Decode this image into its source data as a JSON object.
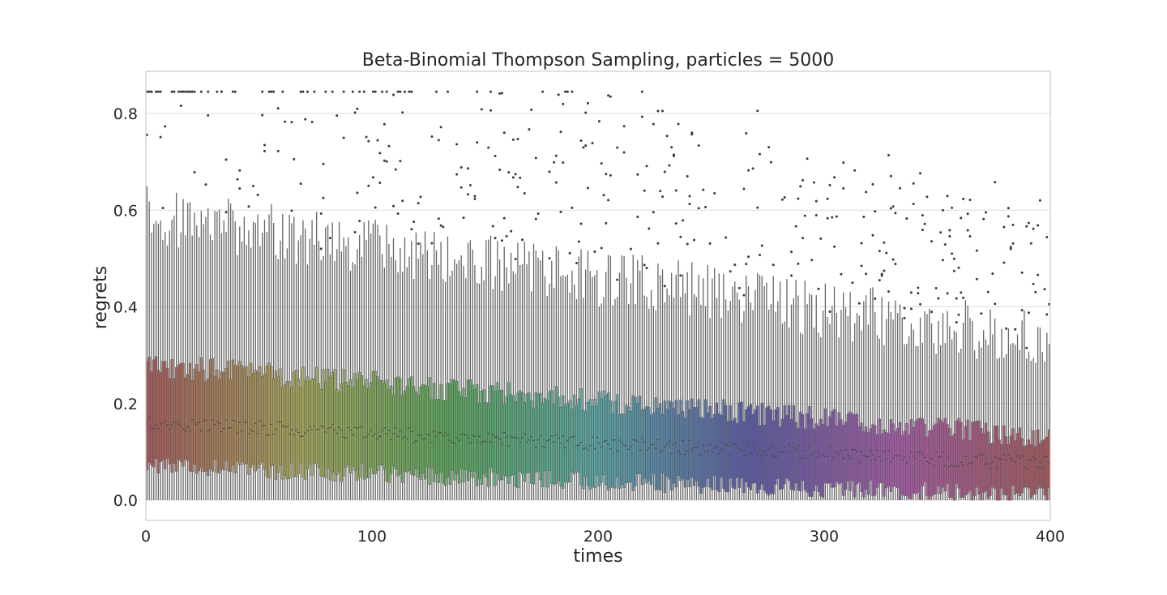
{
  "chart_data": {
    "type": "box",
    "title": "Beta-Binomial Thompson Sampling, particles = 5000",
    "xlabel": "times",
    "ylabel": "regrets",
    "xlim": [
      0,
      400
    ],
    "ylim": [
      -0.04,
      0.89
    ],
    "x_ticks": [
      "0",
      "100",
      "200",
      "300",
      "400"
    ],
    "y_ticks": [
      "0.0",
      "0.2",
      "0.4",
      "0.6",
      "0.8"
    ],
    "grid": true,
    "palette": "husl",
    "n_boxes": 400,
    "summary": {
      "note": "approximate trend of per-time-step box statistics",
      "median_start": 0.16,
      "median_end": 0.075,
      "q1_start": 0.07,
      "q1_end": 0.01,
      "q3_start": 0.28,
      "q3_end": 0.13,
      "whisker_high_start": 0.59,
      "whisker_high_end": 0.33,
      "whisker_low": 0.0,
      "outlier_max": 0.845
    }
  }
}
